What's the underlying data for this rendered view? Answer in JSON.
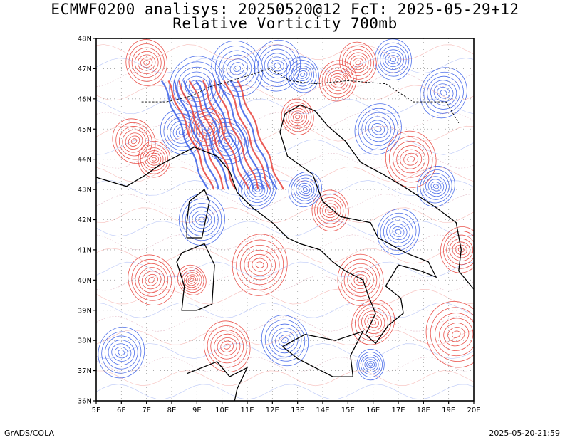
{
  "header": {
    "title_line1": "ECMWF0200 analisys: 20250520@12 FcT: 2025-05-29+12",
    "title_line2": "Relative Vorticity 700mb"
  },
  "axes": {
    "x_ticks": [
      "5E",
      "6E",
      "7E",
      "8E",
      "9E",
      "10E",
      "11E",
      "12E",
      "13E",
      "14E",
      "15E",
      "16E",
      "17E",
      "18E",
      "19E",
      "20E"
    ],
    "y_ticks": [
      "36N",
      "37N",
      "38N",
      "39N",
      "40N",
      "41N",
      "42N",
      "43N",
      "44N",
      "45N",
      "46N",
      "47N",
      "48N"
    ],
    "lon_range": [
      5,
      20
    ],
    "lat_range": [
      36,
      48
    ]
  },
  "colors": {
    "positive_vorticity": "#e8413a",
    "negative_vorticity": "#3a5fe8",
    "coastline": "#000000",
    "grid": "#a0a0a0"
  },
  "footer": {
    "left": "GrADS/COLA",
    "right": "2025-05-20-21:59"
  }
}
